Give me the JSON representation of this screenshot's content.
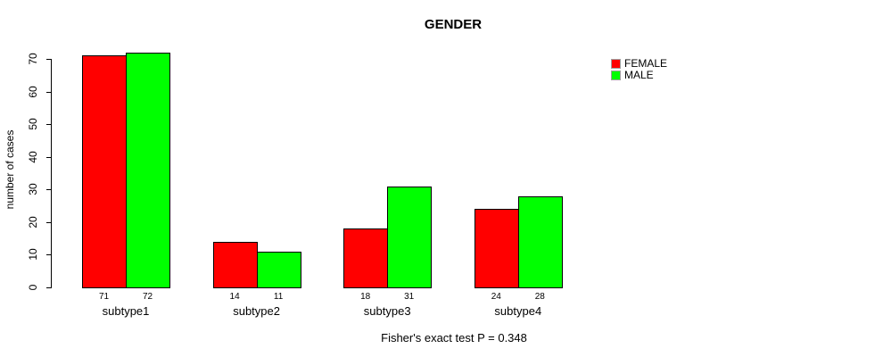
{
  "chart_data": {
    "type": "bar",
    "title": "GENDER",
    "xlabel": "",
    "ylabel": "number of cases",
    "categories": [
      "subtype1",
      "subtype2",
      "subtype3",
      "subtype4"
    ],
    "series": [
      {
        "name": "FEMALE",
        "color": "#ff0000",
        "values": [
          71,
          14,
          18,
          24
        ]
      },
      {
        "name": "MALE",
        "color": "#00ff00",
        "values": [
          72,
          11,
          31,
          28
        ]
      }
    ],
    "show_values_under_bars": true,
    "ylim": [
      0,
      70
    ],
    "yticks": [
      0,
      10,
      20,
      30,
      40,
      50,
      60,
      70
    ],
    "grid": false,
    "legend": {
      "position": "top-right",
      "entries": [
        {
          "label": "FEMALE",
          "color": "#ff0000"
        },
        {
          "label": "MALE",
          "color": "#00ff00"
        }
      ]
    },
    "caption": "Fisher's exact test P = 0.348",
    "colors": {
      "bar_border": "#000000",
      "axis": "#000000",
      "text": "#000000",
      "background": "#ffffff"
    }
  }
}
